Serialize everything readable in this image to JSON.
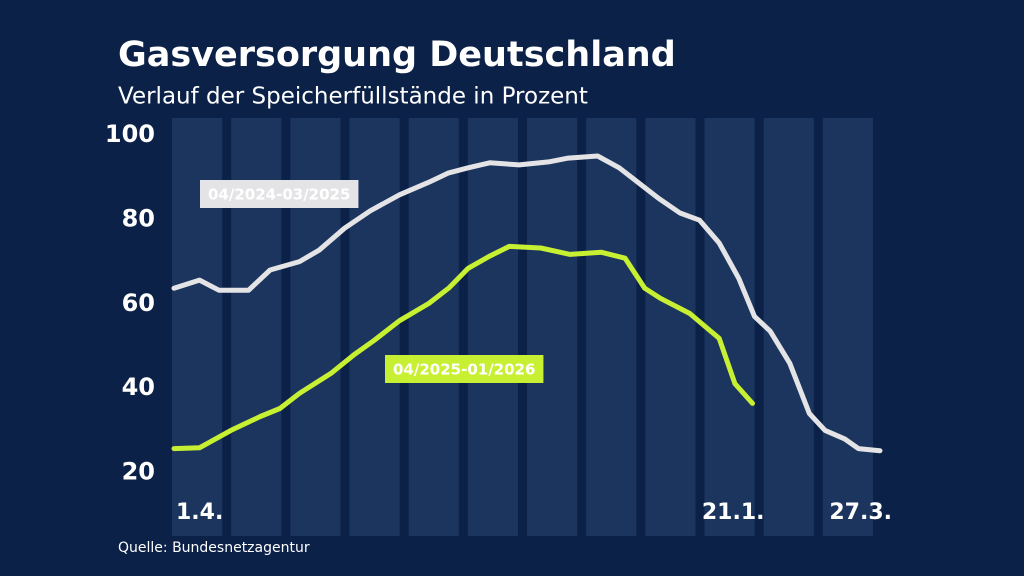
{
  "chart_data": {
    "type": "line",
    "title": "Gasversorgung Deutschland",
    "subtitle": "Verlauf der Speicherfüllstände in Prozent",
    "source": "Quelle: Bundesnetzagentur",
    "xlim": [
      0,
      360
    ],
    "xticks": [
      {
        "value": 0,
        "label": "1.4."
      },
      {
        "value": 295,
        "label": "21.1."
      },
      {
        "value": 360,
        "label": "27.3."
      }
    ],
    "ylim": [
      5,
      104
    ],
    "yticks": [
      20,
      40,
      60,
      80,
      100
    ],
    "series": [
      {
        "name": "04/2024-03/2025",
        "color": "#e4e4e6",
        "x": [
          0,
          13,
          23,
          38,
          49,
          64,
          74,
          87,
          100,
          115,
          130,
          140,
          150,
          161,
          176,
          191,
          201,
          216,
          227,
          237,
          247,
          258,
          268,
          278,
          288,
          296,
          304,
          314,
          324,
          332,
          342,
          349,
          360
        ],
        "values": [
          63.7,
          65.6,
          63.2,
          63.2,
          68,
          70,
          72.7,
          77.9,
          82,
          85.8,
          88.8,
          91,
          92.2,
          93.4,
          92.9,
          93.6,
          94.5,
          95,
          92.2,
          88.6,
          85,
          81.5,
          79.8,
          74.4,
          66,
          57,
          53.5,
          45.9,
          34,
          30,
          28,
          25.7,
          25.2
        ]
      },
      {
        "name": "04/2025-01/2026",
        "color": "#c8f032",
        "x": [
          0,
          13,
          29,
          44,
          54,
          64,
          80,
          92,
          102,
          115,
          130,
          140,
          150,
          161,
          171,
          187,
          202,
          218,
          230,
          240,
          248,
          263,
          278,
          286,
          295
        ],
        "values": [
          25.7,
          25.9,
          30,
          33.3,
          35.2,
          38.8,
          43.5,
          48,
          51.3,
          56,
          60.1,
          63.7,
          68.4,
          71.3,
          73.6,
          73.2,
          71.7,
          72.2,
          70.8,
          63.7,
          61.3,
          57.7,
          51.8,
          41.1,
          36.4
        ]
      }
    ]
  }
}
